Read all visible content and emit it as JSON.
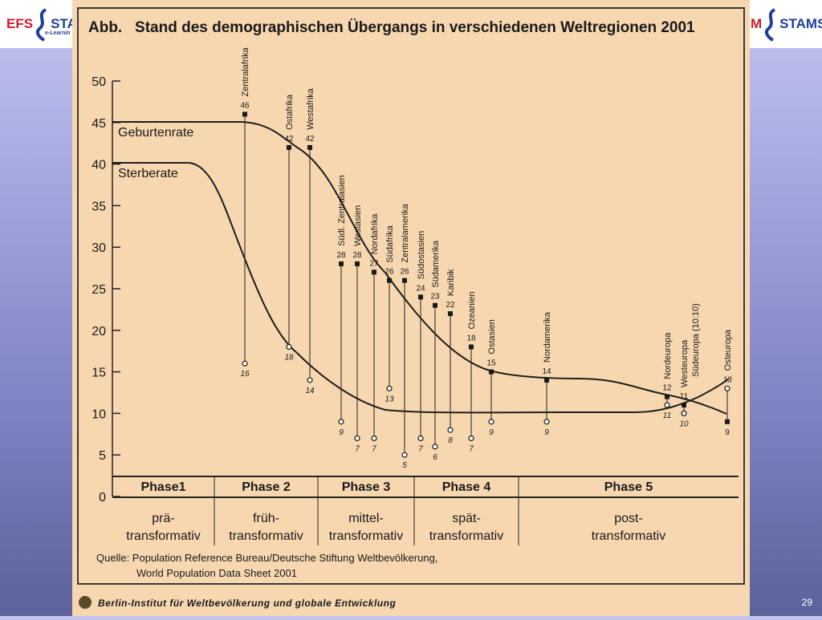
{
  "logos": {
    "left_brand_a": "EFS",
    "left_brand_b": "STAM",
    "left_sub": "e-Learnin",
    "right_brand_a": "M",
    "right_brand_b": "STAMS"
  },
  "slide_number": "29",
  "chart_data": {
    "type": "line",
    "title": "Abb.   Stand des demographischen Übergangs in verschiedenen Weltregionen 2001",
    "ylim": [
      0,
      50
    ],
    "yticks": [
      "0",
      "5",
      "10",
      "15",
      "20",
      "25",
      "30",
      "35",
      "40",
      "45",
      "50"
    ],
    "grid": false,
    "series": [
      {
        "name": "Geburtenrate"
      },
      {
        "name": "Sterberate"
      }
    ],
    "regions": [
      {
        "name": "Zentralafrika",
        "birth": 46,
        "death": 16,
        "birth_label": "46",
        "death_label": "16"
      },
      {
        "name": "Ostafrika",
        "birth": 42,
        "death": 18,
        "birth_label": "42",
        "death_label": "18"
      },
      {
        "name": "Westafrika",
        "birth": 42,
        "death": 14,
        "birth_label": "42",
        "death_label": "14"
      },
      {
        "name": "Südl. Zentralasien",
        "birth": 28,
        "death": 9,
        "birth_label": "28",
        "death_label": "9"
      },
      {
        "name": "Westasien",
        "birth": 28,
        "death": 7,
        "birth_label": "28",
        "death_label": "7"
      },
      {
        "name": "Nordafrika",
        "birth": 27,
        "death": 7,
        "birth_label": "27",
        "death_label": "7"
      },
      {
        "name": "Südafrika",
        "birth": 26,
        "death": 13,
        "birth_label": "26",
        "death_label": "13"
      },
      {
        "name": "Zentralamerika",
        "birth": 26,
        "death": 5,
        "birth_label": "26",
        "death_label": "5"
      },
      {
        "name": "Südostasien",
        "birth": 24,
        "death": 7,
        "birth_label": "24",
        "death_label": "7"
      },
      {
        "name": "Südamerika",
        "birth": 23,
        "death": 6,
        "birth_label": "23",
        "death_label": "6"
      },
      {
        "name": "Karibik",
        "birth": 22,
        "death": 8,
        "birth_label": "22",
        "death_label": "8"
      },
      {
        "name": "Ozeanien",
        "birth": 18,
        "death": 7,
        "birth_label": "18",
        "death_label": "7"
      },
      {
        "name": "Ostasien",
        "birth": 15,
        "death": 9,
        "birth_label": "15",
        "death_label": "9"
      },
      {
        "name": "Nordamerika",
        "birth": 14,
        "death": 9,
        "birth_label": "14",
        "death_label": "9"
      },
      {
        "name": "Nordeuropa",
        "birth": 12,
        "death": 11,
        "birth_label": "12",
        "death_label": "11"
      },
      {
        "name": "Westeuropa",
        "birth": 11,
        "death": 10,
        "birth_label": "11",
        "death_label": "10"
      },
      {
        "name": "Südeuropa (10:10)",
        "birth": null,
        "death": null,
        "birth_label": "",
        "death_label": ""
      },
      {
        "name": "Osteuropa",
        "birth": 9,
        "death": 13,
        "birth_label": "9",
        "death_label": "13"
      }
    ],
    "phases": [
      {
        "name": "Phase1",
        "line1": "prä-",
        "line2": "transformativ"
      },
      {
        "name": "Phase 2",
        "line1": "früh-",
        "line2": "transformativ"
      },
      {
        "name": "Phase 3",
        "line1": "mittel-",
        "line2": "transformativ"
      },
      {
        "name": "Phase 4",
        "line1": "spät-",
        "line2": "transformativ"
      },
      {
        "name": "Phase 5",
        "line1": "post-",
        "line2": "transformativ"
      }
    ],
    "source_line1": "Quelle: Population Reference Bureau/Deutsche Stiftung Weltbevölkerung,",
    "source_line2": "World Population Data Sheet 2001",
    "institute": "Berlin-Institut für Weltbevölkerung und globale Entwicklung"
  }
}
